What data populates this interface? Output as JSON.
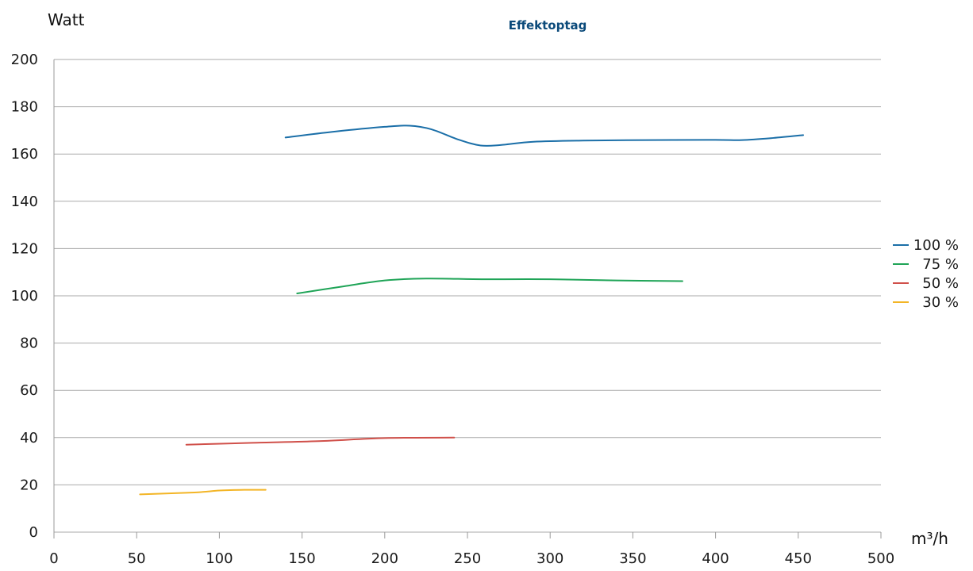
{
  "chart_data": {
    "type": "line",
    "title": "Effektoptag",
    "ylabel": "Watt",
    "xlabel": "m³/h",
    "xlim": [
      0,
      500
    ],
    "ylim": [
      0,
      200
    ],
    "xticks": [
      "0",
      "50",
      "100",
      "150",
      "200",
      "250",
      "300",
      "350",
      "400",
      "450",
      "500"
    ],
    "yticks": [
      "0",
      "20",
      "40",
      "60",
      "80",
      "100",
      "120",
      "140",
      "160",
      "180",
      "200"
    ],
    "grid": "horizontal",
    "legend_position": "right",
    "series": [
      {
        "name": "100 %",
        "color": "#1b6fa8",
        "points": [
          [
            140,
            167
          ],
          [
            170,
            169.5
          ],
          [
            200,
            171.5
          ],
          [
            215,
            172
          ],
          [
            228,
            170.5
          ],
          [
            245,
            166
          ],
          [
            258,
            163.6
          ],
          [
            270,
            163.8
          ],
          [
            290,
            165.2
          ],
          [
            320,
            165.7
          ],
          [
            360,
            165.9
          ],
          [
            400,
            166
          ],
          [
            416,
            165.9
          ],
          [
            435,
            166.8
          ],
          [
            453,
            168
          ]
        ]
      },
      {
        "name": "75 %",
        "color": "#1fa457",
        "points": [
          [
            147,
            101
          ],
          [
            175,
            104
          ],
          [
            200,
            106.5
          ],
          [
            225,
            107.3
          ],
          [
            260,
            107
          ],
          [
            300,
            107
          ],
          [
            340,
            106.5
          ],
          [
            380,
            106.2
          ]
        ]
      },
      {
        "name": "50 %",
        "color": "#d0504a",
        "points": [
          [
            80,
            37
          ],
          [
            120,
            37.8
          ],
          [
            160,
            38.5
          ],
          [
            200,
            39.8
          ],
          [
            242,
            40
          ]
        ]
      },
      {
        "name": "30 %",
        "color": "#f3b526",
        "points": [
          [
            52,
            16
          ],
          [
            85,
            16.8
          ],
          [
            100,
            17.6
          ],
          [
            115,
            17.9
          ],
          [
            128,
            17.9
          ]
        ]
      }
    ]
  }
}
